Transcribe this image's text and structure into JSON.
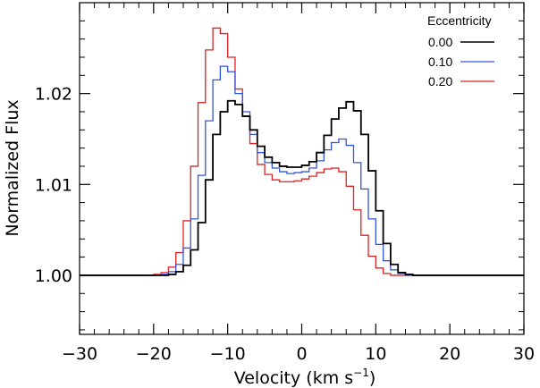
{
  "chart_data": {
    "type": "line",
    "style": "step",
    "title": "",
    "xlabel": "Velocity (km s",
    "xlabel_sup": "−1",
    "xlabel_close": ")",
    "ylabel": "Normalized Flux",
    "xlim": [
      -30,
      30
    ],
    "ylim": [
      0.9935,
      1.03
    ],
    "xticks": [
      -30,
      -20,
      -10,
      0,
      10,
      20,
      30
    ],
    "xtick_labels": [
      "−30",
      "−20",
      "−10",
      "0",
      "10",
      "20",
      "30"
    ],
    "yticks": [
      1.0,
      1.01,
      1.02
    ],
    "ytick_labels": [
      "1.00",
      "1.01",
      "1.02"
    ],
    "grid": false,
    "legend": {
      "title": "Eccentricity",
      "position": "top-right"
    },
    "bin_width": 1,
    "x": [
      -30,
      -29,
      -28,
      -27,
      -26,
      -25,
      -24,
      -23,
      -22,
      -21,
      -20,
      -19,
      -18,
      -17,
      -16,
      -15,
      -14,
      -13,
      -12,
      -11,
      -10,
      -9,
      -8,
      -7,
      -6,
      -5,
      -4,
      -3,
      -2,
      -1,
      0,
      1,
      2,
      3,
      4,
      5,
      6,
      7,
      8,
      9,
      10,
      11,
      12,
      13,
      14,
      15,
      16,
      17,
      18,
      19,
      20,
      21,
      22,
      23,
      24,
      25,
      26,
      27,
      28,
      29
    ],
    "series": [
      {
        "name": "0.00",
        "color": "#000000",
        "values": [
          1,
          1,
          1,
          1,
          1,
          1,
          1,
          1,
          1,
          1,
          1,
          1,
          1.0001,
          1.0004,
          1.0011,
          1.0028,
          1.0058,
          1.0105,
          1.0155,
          1.018,
          1.0192,
          1.0188,
          1.0175,
          1.016,
          1.0142,
          1.013,
          1.0124,
          1.012,
          1.0119,
          1.0119,
          1.0121,
          1.0125,
          1.0135,
          1.0154,
          1.0172,
          1.0184,
          1.0191,
          1.0181,
          1.0155,
          1.0115,
          1.0071,
          1.0035,
          1.0012,
          1.0003,
          1.0001,
          1,
          1,
          1,
          1,
          1,
          1,
          1,
          1,
          1,
          1,
          1,
          1,
          1,
          1,
          1
        ]
      },
      {
        "name": "0.10",
        "color": "#3355dd",
        "values": [
          1,
          1,
          1,
          1,
          1,
          1,
          1,
          1,
          1,
          1,
          1,
          1.0001,
          1.0004,
          1.0012,
          1.003,
          1.0062,
          1.011,
          1.017,
          1.0215,
          1.023,
          1.0224,
          1.02,
          1.018,
          1.0155,
          1.0135,
          1.0124,
          1.0118,
          1.0114,
          1.0112,
          1.0113,
          1.0114,
          1.0118,
          1.0126,
          1.0138,
          1.0146,
          1.015,
          1.0143,
          1.0124,
          1.0095,
          1.0062,
          1.0034,
          1.0016,
          1.0006,
          1.0002,
          1,
          1,
          1,
          1,
          1,
          1,
          1,
          1,
          1,
          1,
          1,
          1,
          1,
          1,
          1,
          1
        ]
      },
      {
        "name": "0.20",
        "color": "#dd2222",
        "values": [
          1,
          1,
          1,
          1,
          1,
          1,
          1,
          1,
          1,
          1,
          1.0001,
          1.0003,
          1.0009,
          1.0025,
          1.006,
          1.012,
          1.019,
          1.0248,
          1.0272,
          1.0266,
          1.024,
          1.0205,
          1.0175,
          1.0145,
          1.0122,
          1.0111,
          1.0105,
          1.0103,
          1.0103,
          1.0104,
          1.0106,
          1.0109,
          1.0113,
          1.0117,
          1.0118,
          1.0114,
          1.0098,
          1.0072,
          1.0044,
          1.0021,
          1.0008,
          1.0002,
          1,
          1,
          1,
          1,
          1,
          1,
          1,
          1,
          1,
          1,
          1,
          1,
          1,
          1,
          1,
          1,
          1,
          1
        ]
      }
    ]
  }
}
